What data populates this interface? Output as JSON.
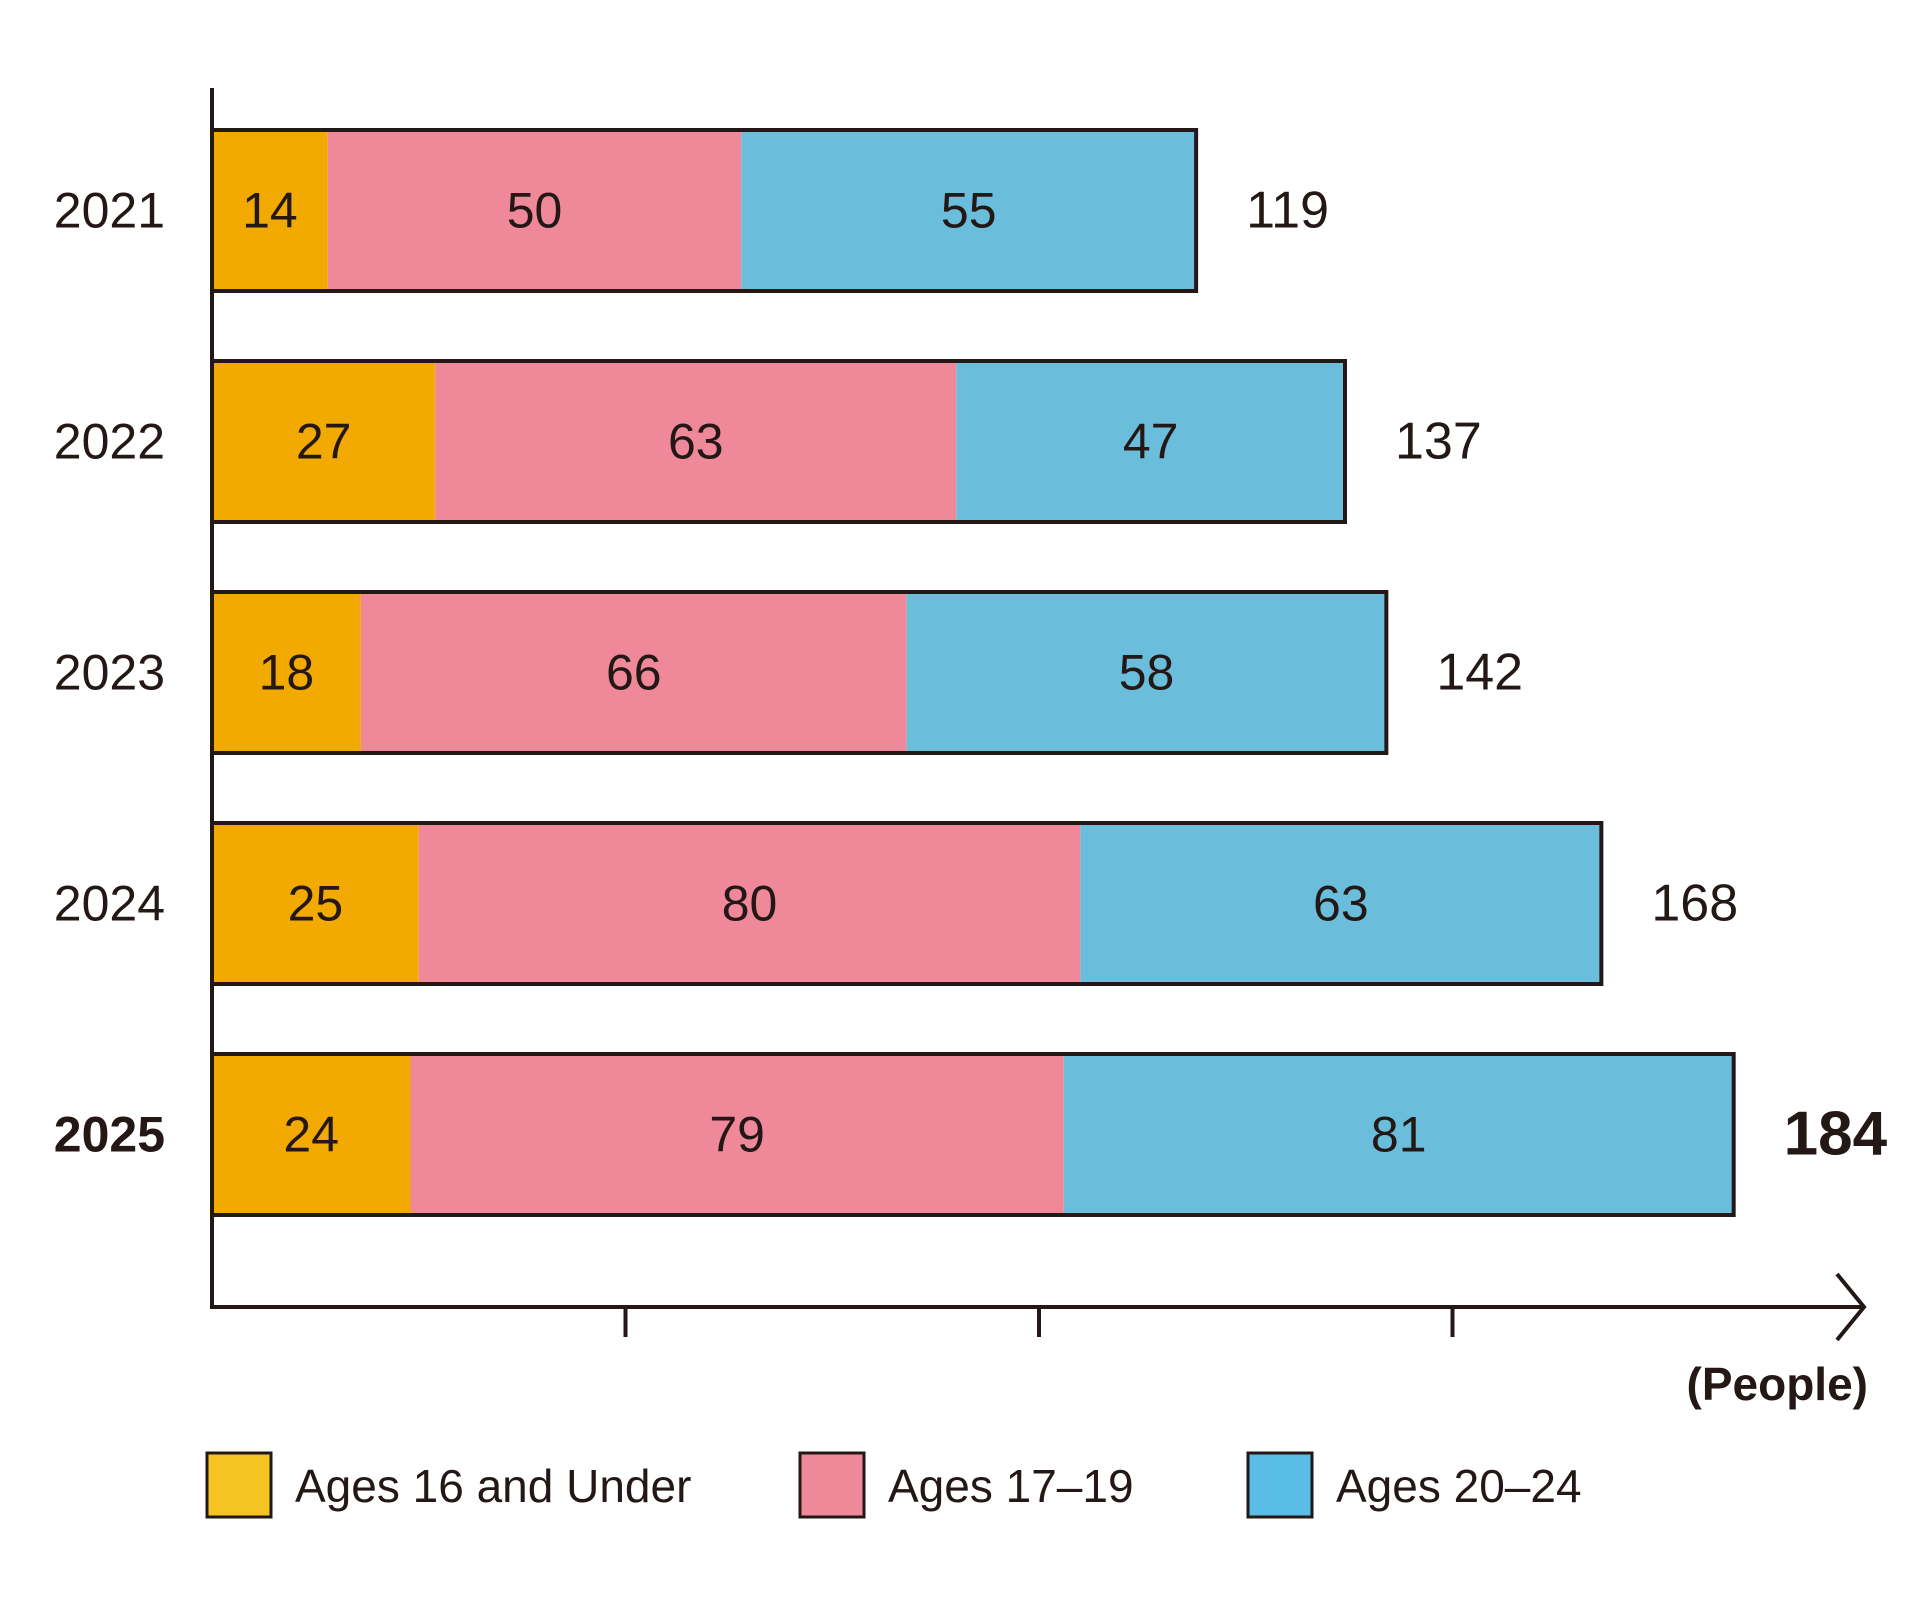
{
  "chart_data": {
    "type": "bar",
    "orientation": "horizontal",
    "stacked": true,
    "categories": [
      "2021",
      "2022",
      "2023",
      "2024",
      "2025"
    ],
    "highlight_category": "2025",
    "series": [
      {
        "name": "Ages 16 and Under",
        "values": [
          14,
          27,
          18,
          25,
          24
        ],
        "color": "#f2a900",
        "legend_color": "#f5c322"
      },
      {
        "name": "Ages 17–19",
        "values": [
          50,
          63,
          66,
          80,
          79
        ],
        "color": "#ef8899",
        "legend_color": "#ef8899"
      },
      {
        "name": "Ages 20–24",
        "values": [
          55,
          47,
          58,
          63,
          81
        ],
        "color": "#6bbedb",
        "legend_color": "#5abde8"
      }
    ],
    "totals": [
      119,
      137,
      142,
      168,
      184
    ],
    "unit": "(People)",
    "xlim": [
      0,
      200
    ],
    "x_ticks": [
      50,
      100,
      150
    ],
    "tick_labels_shown": false,
    "grid": false,
    "legend_position": "bottom"
  }
}
